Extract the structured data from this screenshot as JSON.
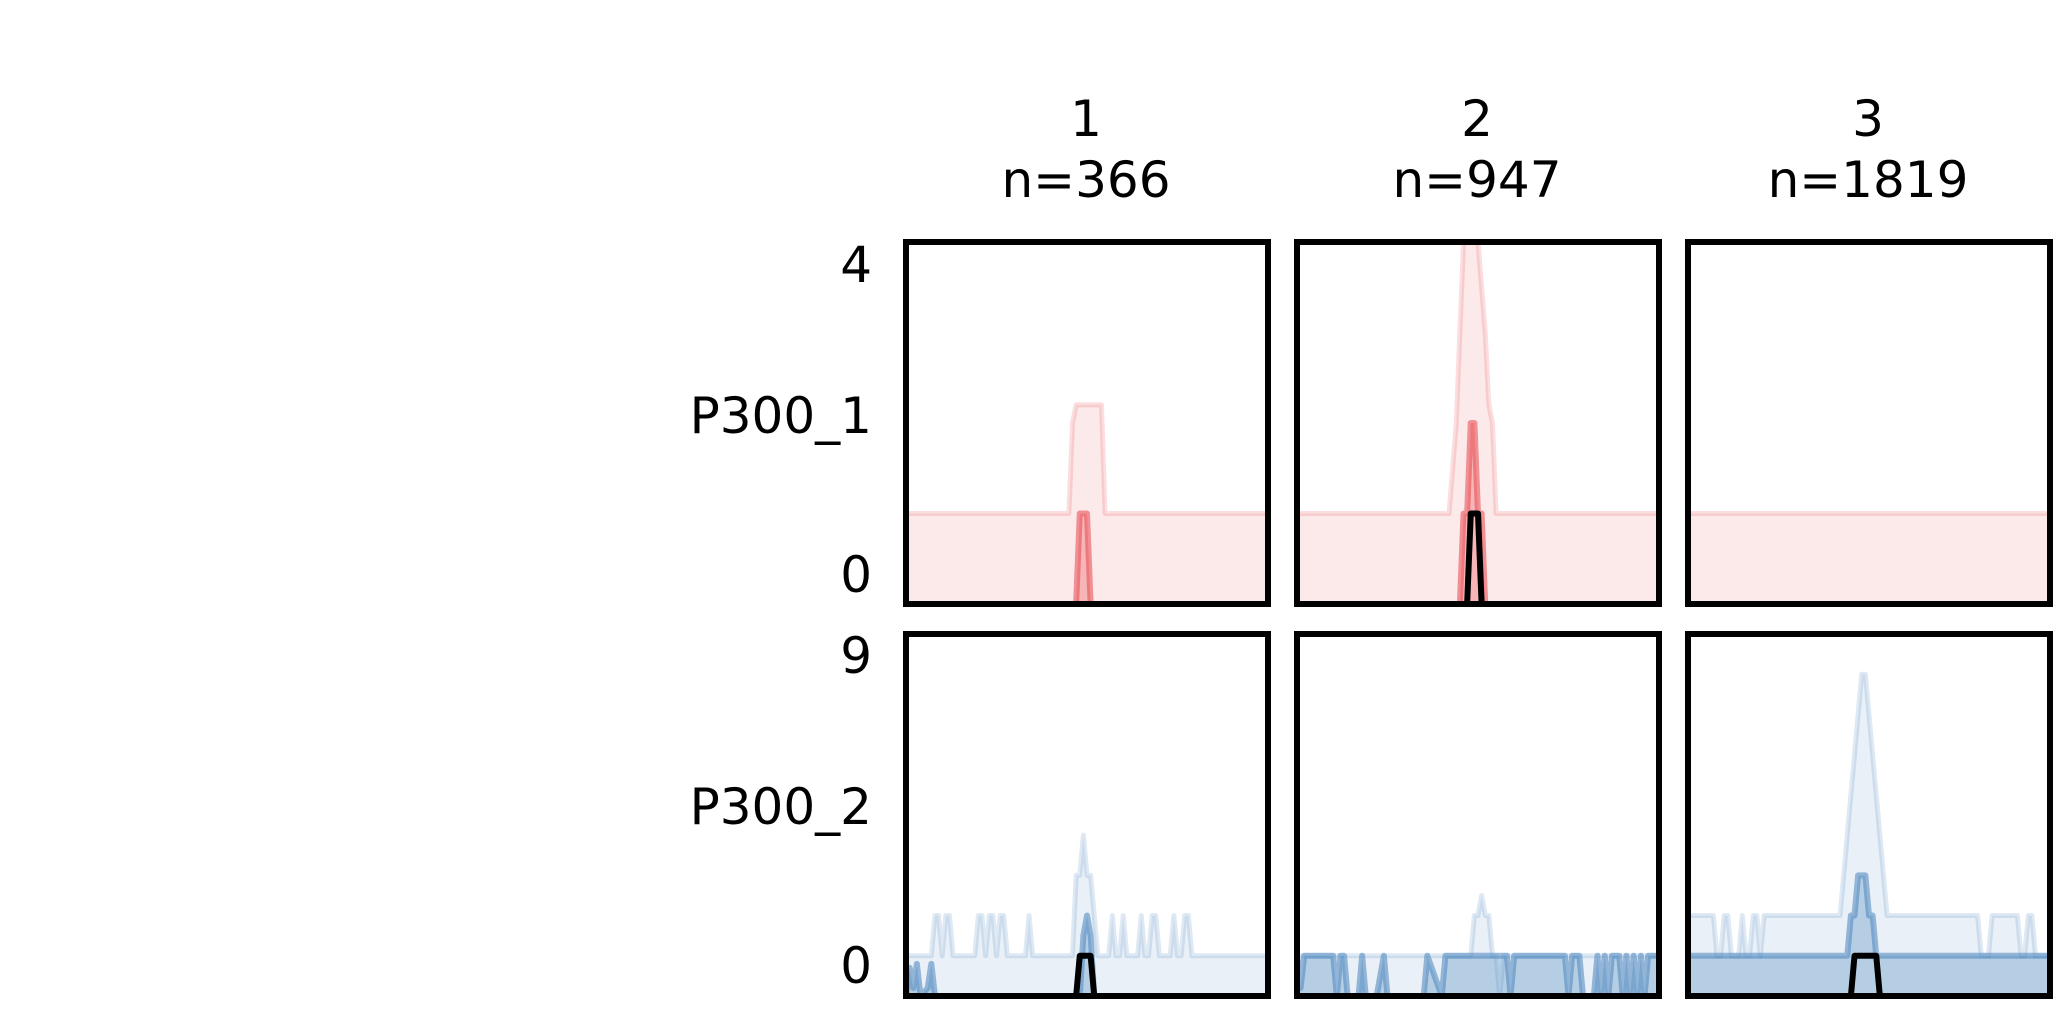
{
  "chart_data": {
    "type": "area",
    "grid": false,
    "legend": "none",
    "columns": [
      {
        "title": "1",
        "n_label": "n=366"
      },
      {
        "title": "2",
        "n_label": "n=947"
      },
      {
        "title": "3",
        "n_label": "n=1819"
      }
    ],
    "rows": [
      {
        "label": "P300_1",
        "color": "#e8474e",
        "ylim": [
          0,
          4
        ],
        "yticks": [
          "4",
          "0"
        ],
        "x_domain": [
          0,
          100
        ],
        "panels": [
          {
            "outer_x": [
              0,
              45,
              46,
              47,
              48,
              54,
              55,
              100
            ],
            "outer_y": [
              1,
              1,
              2,
              2.2,
              2.2,
              2.2,
              1,
              1
            ],
            "inner_x": [
              0,
              47,
              48,
              49,
              50,
              51,
              100
            ],
            "inner_y": [
              0,
              0,
              1,
              1,
              1,
              0,
              0
            ],
            "median": null
          },
          {
            "outer_x": [
              0,
              42,
              43,
              44,
              45,
              46,
              48,
              50,
              52,
              53,
              54,
              55,
              56,
              100
            ],
            "outer_y": [
              1,
              1,
              1.5,
              2,
              3,
              4,
              4,
              4,
              3,
              2.2,
              2,
              1,
              1,
              1
            ],
            "inner_x": [
              0,
              45,
              46,
              47,
              48,
              49,
              50,
              51,
              52,
              100
            ],
            "inner_y": [
              0,
              0,
              1,
              1,
              2,
              2,
              1,
              1,
              0,
              0
            ],
            "median": {
              "x": [
                0,
                47,
                48,
                49,
                50,
                51,
                100
              ],
              "y": [
                0,
                0,
                1,
                1,
                1,
                0,
                0
              ]
            }
          },
          {
            "outer_x": [
              0,
              100
            ],
            "outer_y": [
              1,
              1
            ],
            "inner_x": [
              0,
              100
            ],
            "inner_y": [
              0,
              0
            ],
            "median": null
          }
        ]
      },
      {
        "label": "P300_2",
        "color": "#4a85bd",
        "ylim": [
          0,
          9
        ],
        "yticks": [
          "9",
          "0"
        ],
        "x_domain": [
          0,
          100
        ],
        "panels": [
          {
            "outer_x": [
              0,
              7,
              8,
              9,
              10,
              11,
              12,
              13,
              19,
              20,
              21,
              22,
              23,
              24,
              25,
              26,
              27,
              28,
              29,
              30,
              31,
              32,
              33,
              34,
              35,
              42,
              43,
              44,
              45,
              46,
              47,
              48,
              49,
              50,
              51,
              52,
              53,
              54,
              55,
              56,
              57,
              58,
              59,
              60,
              61,
              62,
              63,
              64,
              65,
              66,
              67,
              68,
              69,
              70,
              71,
              72,
              73,
              74,
              75,
              76,
              77,
              78,
              79,
              80,
              81,
              82,
              100
            ],
            "outer_y": [
              1,
              1,
              2,
              2,
              1,
              2,
              2,
              1,
              1,
              2,
              2,
              1,
              2,
              2,
              1,
              2,
              2,
              1,
              1,
              1,
              1,
              1,
              1,
              2,
              1,
              1,
              1,
              1,
              1,
              1,
              3,
              3,
              4,
              3,
              3,
              2,
              1,
              1,
              1,
              1,
              2,
              1,
              1,
              2,
              1,
              1,
              1,
              1,
              2,
              1,
              1,
              2,
              2,
              1,
              1,
              1,
              1,
              2,
              1,
              1,
              2,
              2,
              1,
              1,
              1,
              1,
              1
            ],
            "inner_x": [
              0,
              1,
              2,
              3,
              4,
              6,
              7,
              8,
              48,
              49,
              50,
              51,
              52,
              100
            ],
            "inner_y": [
              0,
              0.7,
              0.2,
              0.8,
              0,
              0.2,
              0.8,
              0,
              0,
              1.5,
              2,
              1.5,
              0,
              0
            ],
            "median": {
              "x": [
                0,
                47,
                48,
                49,
                50,
                51,
                52,
                100
              ],
              "y": [
                0,
                0,
                1,
                1,
                1,
                1,
                0,
                0
              ]
            }
          },
          {
            "outer_x": [
              0,
              47,
              48,
              49,
              50,
              51,
              52,
              53,
              54,
              55,
              56,
              57,
              58,
              100
            ],
            "outer_y": [
              1,
              1,
              1,
              2,
              2,
              2.5,
              2,
              2,
              1,
              1,
              0,
              1,
              1,
              1
            ],
            "inner_x": [
              0,
              1,
              2,
              3,
              4,
              10,
              11,
              12,
              13,
              14,
              15,
              17,
              18,
              19,
              22,
              24,
              25,
              35,
              36,
              40,
              41,
              43,
              44,
              48,
              58,
              59,
              60,
              74,
              75,
              76,
              77,
              78,
              79,
              82,
              83,
              84,
              85,
              86,
              87,
              88,
              89,
              90,
              91,
              92,
              93,
              94,
              95,
              96,
              97,
              98,
              99,
              100
            ],
            "inner_y": [
              1,
              0.2,
              1,
              1,
              1,
              1,
              0,
              1,
              1,
              0,
              0,
              0,
              1,
              0,
              0,
              1,
              0,
              0,
              1,
              0,
              1,
              1,
              1,
              1,
              1,
              0,
              1,
              1,
              0,
              1,
              1,
              1,
              0,
              0,
              1,
              0,
              1,
              0,
              1,
              1,
              1,
              0,
              1,
              0,
              1,
              0,
              1,
              0,
              1,
              1,
              1,
              1
            ],
            "median": null
          },
          {
            "outer_x": [
              0,
              6,
              7,
              8,
              9,
              10,
              11,
              12,
              13,
              14,
              15,
              16,
              17,
              18,
              19,
              20,
              21,
              40,
              41,
              42,
              43,
              44,
              45,
              46,
              47,
              48,
              49,
              50,
              51,
              52,
              53,
              54,
              55,
              56,
              57,
              58,
              59,
              60,
              61,
              79,
              80,
              81,
              82,
              83,
              84,
              91,
              92,
              93,
              94,
              95,
              96,
              100
            ],
            "outer_y": [
              2,
              2,
              2,
              1,
              1,
              2,
              2,
              1,
              1,
              1,
              2,
              1,
              1,
              2,
              2,
              1,
              2,
              2,
              2,
              2,
              3,
              4,
              5,
              6,
              7,
              8,
              8,
              7,
              6,
              5,
              4,
              3,
              2,
              2,
              2,
              2,
              2,
              2,
              2,
              2,
              2,
              1,
              1,
              1,
              2,
              2,
              1,
              1,
              2,
              2,
              1,
              1
            ],
            "inner_x": [
              0,
              43,
              44,
              45,
              46,
              47,
              48,
              49,
              50,
              51,
              52,
              53,
              54,
              100
            ],
            "inner_y": [
              1,
              1,
              1,
              2,
              2,
              3,
              3,
              3,
              2,
              2,
              1,
              1,
              1,
              1
            ],
            "median": {
              "x": [
                0,
                45,
                46,
                47,
                52,
                53,
                54,
                100
              ],
              "y": [
                0,
                0,
                1,
                1,
                1,
                0,
                0,
                0
              ]
            }
          }
        ]
      }
    ]
  }
}
